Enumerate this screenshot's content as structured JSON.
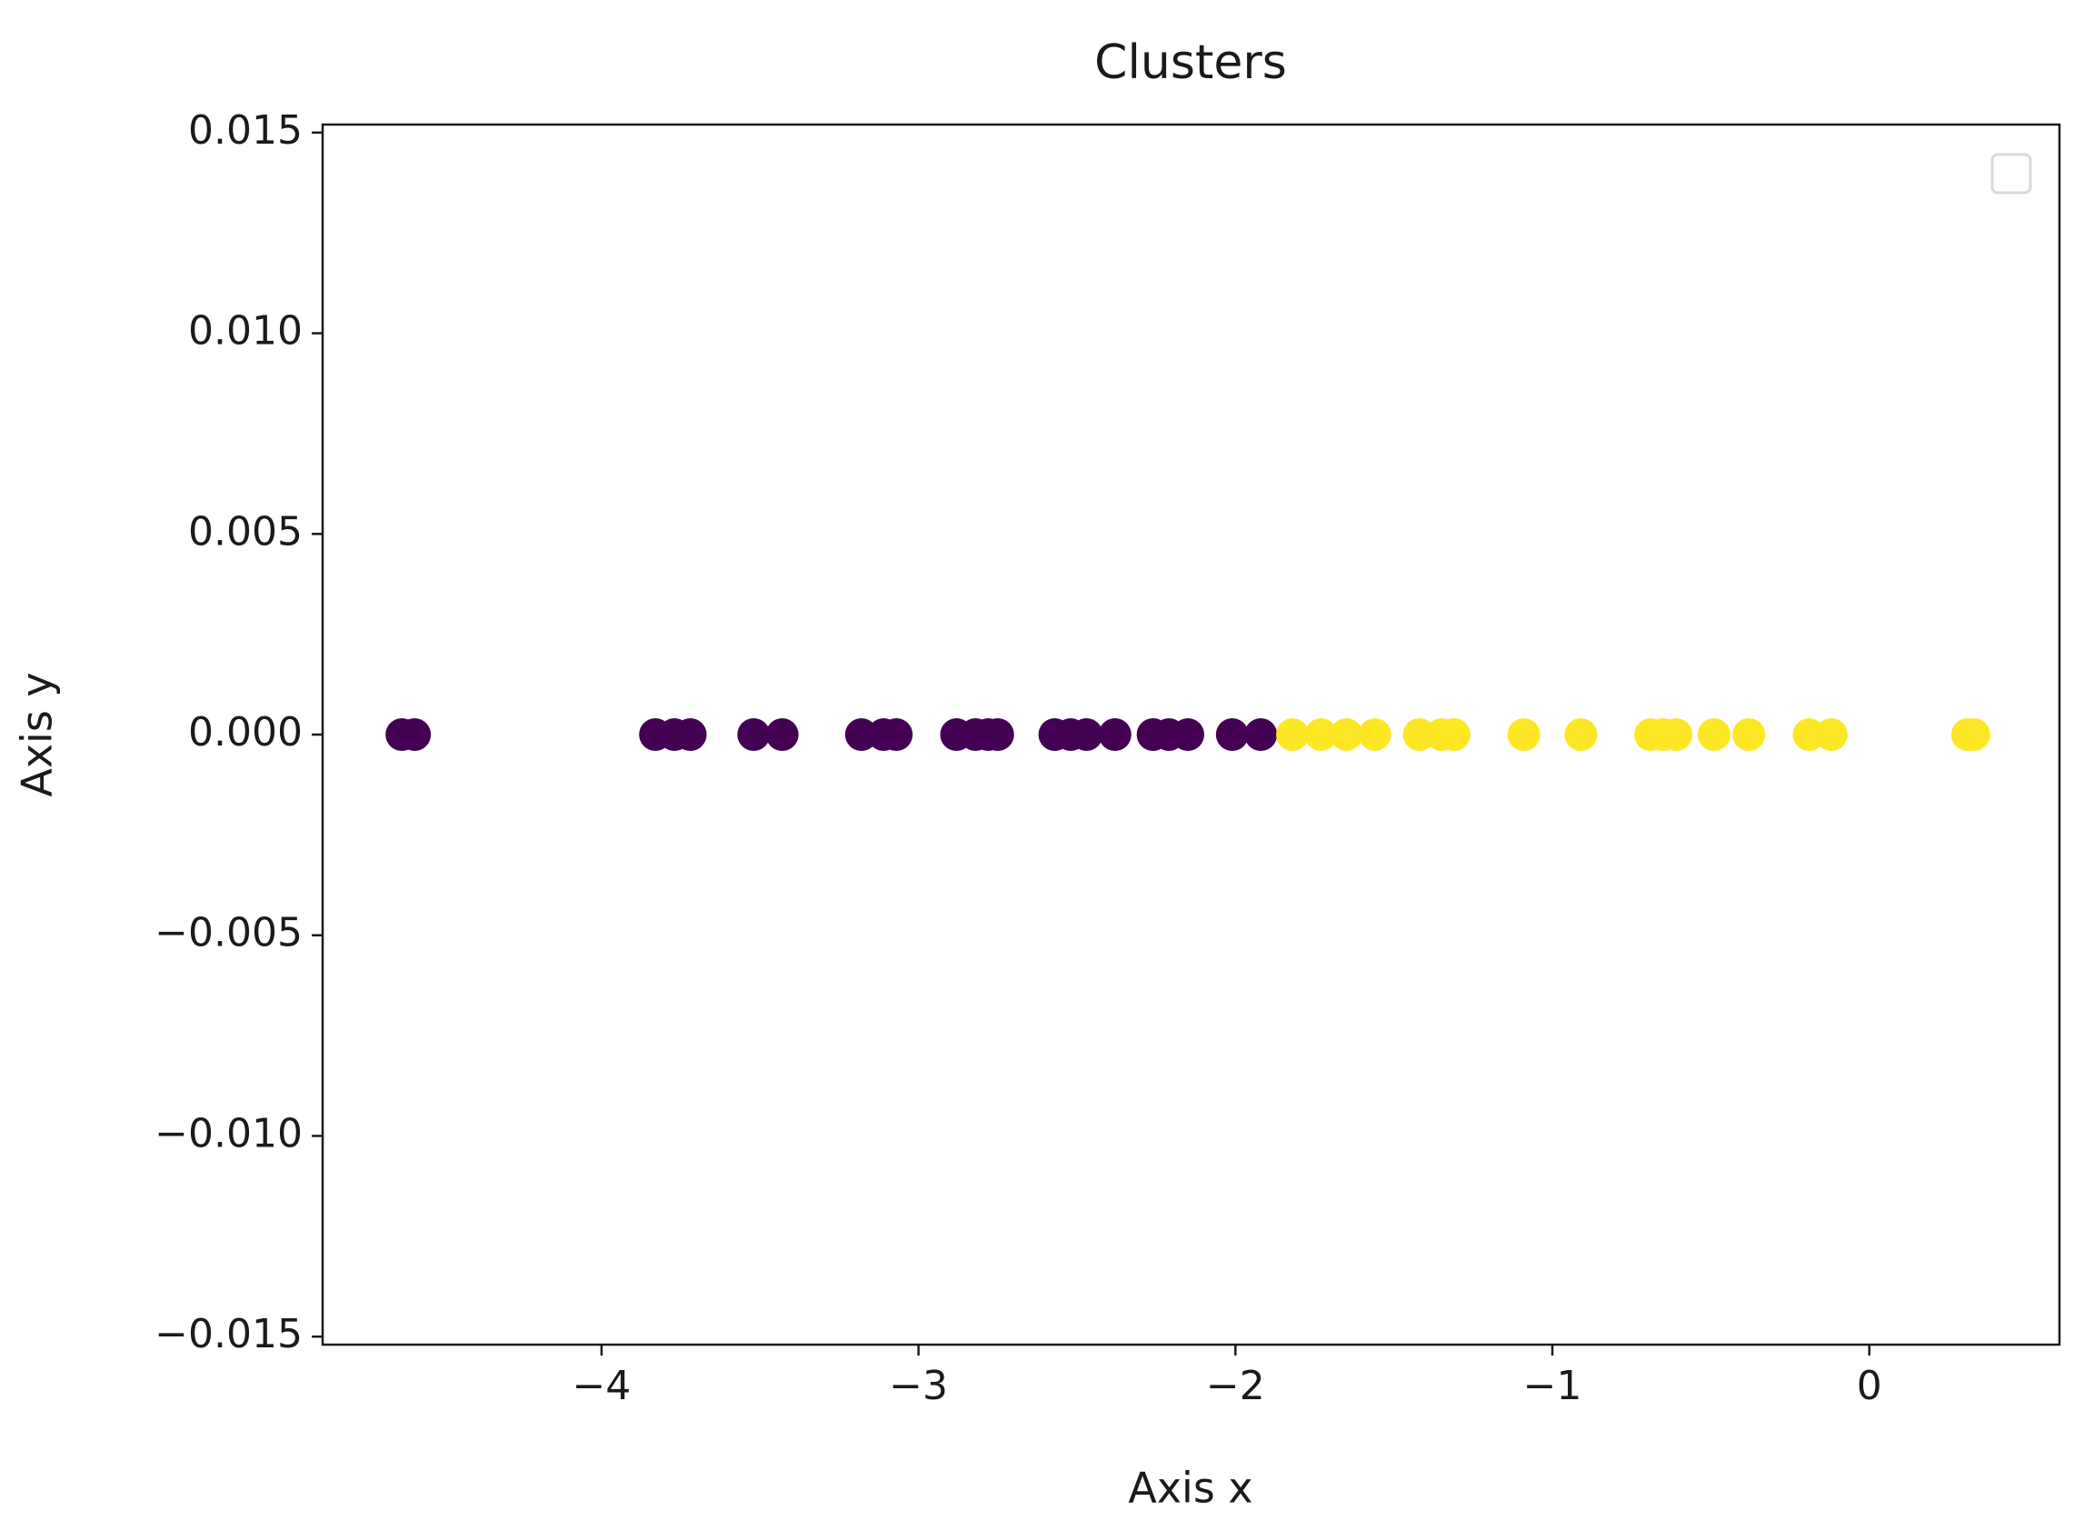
{
  "chart_data": {
    "type": "scatter",
    "title": "Clusters",
    "x_label": "Axis x",
    "y_label": "Axis y",
    "xlim": [
      -4.88,
      0.6
    ],
    "ylim": [
      -0.0152,
      0.0152
    ],
    "xticks": [
      {
        "value": -4,
        "label": "−4"
      },
      {
        "value": -3,
        "label": "−3"
      },
      {
        "value": -2,
        "label": "−2"
      },
      {
        "value": -1,
        "label": "−1"
      },
      0
    ],
    "yticks": [
      {
        "value": -0.015,
        "label": "−0.015"
      },
      {
        "value": -0.01,
        "label": "−0.010"
      },
      {
        "value": -0.005,
        "label": "−0.005"
      },
      {
        "value": 0,
        "label": "0.000"
      },
      0.005,
      {
        "value": 0.01,
        "label": "0.010"
      },
      0.015
    ],
    "grid": false,
    "series": [
      {
        "color": "#440154",
        "x": [
          -4.63,
          -4.59,
          -3.83,
          -3.77,
          -3.72,
          -3.52,
          -3.43,
          -3.18,
          -3.11,
          -3.07,
          -2.88,
          -2.82,
          -2.78,
          -2.75,
          -2.57,
          -2.52,
          -2.47,
          -2.38,
          -2.26,
          -2.21,
          -2.15,
          -2.01,
          -1.92
        ],
        "values": [
          0,
          0,
          0,
          0,
          0,
          0,
          0,
          0,
          0,
          0,
          0,
          0,
          0,
          0,
          0,
          0,
          0,
          0,
          0,
          0,
          0,
          0,
          0
        ]
      },
      {
        "color": "#fde725",
        "x": [
          -1.82,
          -1.73,
          -1.65,
          -1.56,
          -1.42,
          -1.35,
          -1.31,
          -1.09,
          -0.91,
          -0.69,
          -0.65,
          -0.61,
          -0.49,
          -0.38,
          -0.19,
          -0.12,
          0.31,
          0.33
        ],
        "values": [
          0,
          0,
          0,
          0,
          0,
          0,
          0,
          0,
          0,
          0,
          0,
          0,
          0,
          0,
          0,
          0,
          0,
          0
        ]
      }
    ]
  }
}
